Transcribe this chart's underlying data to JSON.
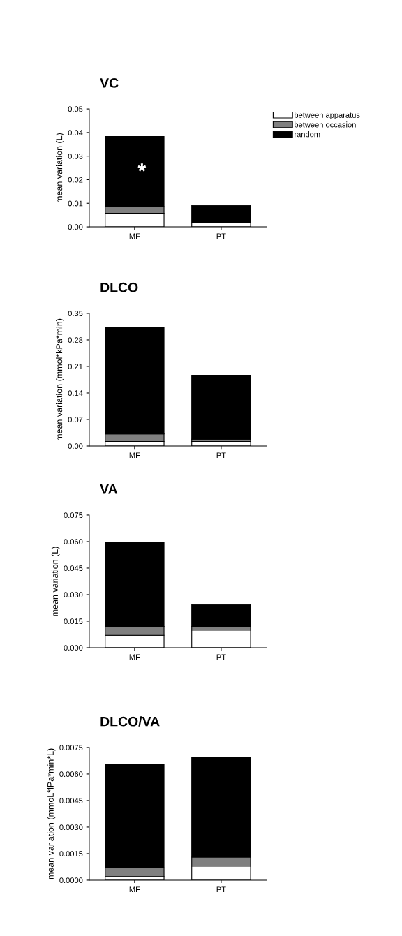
{
  "chart_data": [
    {
      "type": "bar",
      "title": "VC",
      "ylabel": "mean variation (L)",
      "categories": [
        "MF",
        "PT"
      ],
      "stacked": true,
      "legend": "top right",
      "grid": false,
      "series": [
        {
          "name": "between apparatus",
          "color": "#ffffff",
          "values": [
            0.0058,
            0.0017
          ]
        },
        {
          "name": "between occasion",
          "color": "#808080",
          "values": [
            0.0028,
            null
          ]
        },
        {
          "name": "random",
          "color": "#000000",
          "values": [
            0.0297,
            0.0074
          ]
        }
      ],
      "ylim": [
        0,
        0.05
      ],
      "yticks": [
        {
          "value": 0,
          "label": "0.00"
        },
        0.01,
        0.02,
        0.03,
        0.04,
        0.05
      ],
      "annotations": [
        "*"
      ]
    },
    {
      "type": "bar",
      "title": "DLCO",
      "ylabel": "mean variation (mmol*kPa*min)",
      "categories": [
        "MF",
        "PT"
      ],
      "stacked": true,
      "grid": false,
      "series": [
        {
          "color": "#ffffff",
          "values": [
            0.012,
            0.012
          ]
        },
        {
          "color": "#808080",
          "values": [
            0.02,
            0.006
          ]
        },
        {
          "color": "#000000",
          "values": [
            0.28,
            0.169
          ]
        }
      ],
      "ylim": [
        0,
        0.35
      ],
      "yticks": [
        {
          "value": 0,
          "label": "0.00"
        },
        0.07,
        0.14,
        0.21,
        0.28,
        0.35
      ]
    },
    {
      "type": "bar",
      "title": "VA",
      "ylabel": "mean variation (L)",
      "categories": [
        "MF",
        "PT"
      ],
      "stacked": true,
      "grid": false,
      "series": [
        {
          "color": "#ffffff",
          "values": [
            0.007,
            0.01
          ]
        },
        {
          "color": "#808080",
          "values": [
            0.005,
            0.002
          ]
        },
        {
          "color": "#000000",
          "values": [
            0.0476,
            0.0124
          ]
        }
      ],
      "ylim": [
        0,
        0.075
      ],
      "yticks": [
        {
          "value": 0,
          "label": "0.000"
        },
        0.015,
        {
          "value": 0.03,
          "label": "0.030"
        },
        0.045,
        {
          "value": 0.06,
          "label": "0.060"
        },
        0.075
      ]
    },
    {
      "type": "bar",
      "title": "DLCO/VA",
      "ylabel": "mean variation (mmoL*lPa*min*L)",
      "categories": [
        "MF",
        "PT"
      ],
      "stacked": true,
      "grid": false,
      "series": [
        {
          "color": "#ffffff",
          "values": [
            0.0002,
            0.0008
          ]
        },
        {
          "color": "#808080",
          "values": [
            0.0005,
            0.0005
          ]
        },
        {
          "color": "#000000",
          "values": [
            0.00585,
            0.00565
          ]
        }
      ],
      "ylim": [
        0,
        0.0075
      ],
      "yticks": [
        {
          "value": 0,
          "label": "0.0000"
        },
        0.0015,
        {
          "value": 0.003,
          "label": "0.0030"
        },
        0.0045,
        {
          "value": 0.006,
          "label": "0.0060"
        },
        0.0075
      ]
    }
  ]
}
